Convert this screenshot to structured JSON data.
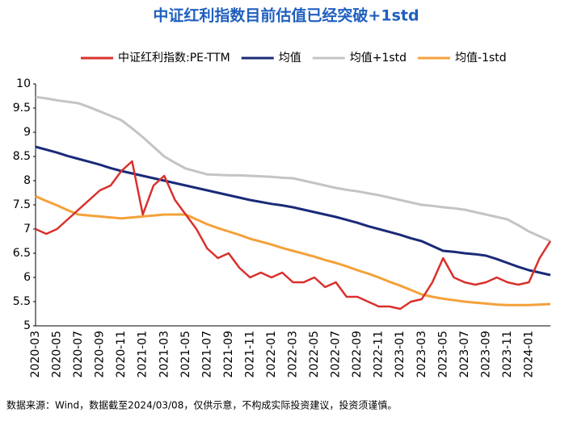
{
  "chart_data": {
    "type": "line",
    "title": "中证红利指数目前估值已经突破+1std",
    "note": "数据来源：Wind，数据截至2024/03/08，仅供示意，不构成实际投资建议，投资须谨慎。",
    "categories": [
      "2020-03",
      null,
      "2020-05",
      null,
      "2020-07",
      null,
      "2020-09",
      null,
      "2020-11",
      null,
      "2021-01",
      null,
      "2021-03",
      null,
      "2021-05",
      null,
      "2021-07",
      null,
      "2021-09",
      null,
      "2021-11",
      null,
      "2022-01",
      null,
      "2022-03",
      null,
      "2022-05",
      null,
      "2022-07",
      null,
      "2022-09",
      null,
      "2022-11",
      null,
      "2023-01",
      null,
      "2023-03",
      null,
      "2023-05",
      null,
      "2023-07",
      null,
      "2023-09",
      null,
      "2023-11",
      null,
      "2024-01",
      null,
      null
    ],
    "ylim": [
      5,
      10
    ],
    "yticks": [
      5,
      5.5,
      6,
      6.5,
      7,
      7.5,
      8,
      8.5,
      9,
      9.5,
      10
    ],
    "series": [
      {
        "name": "中证红利指数:PE-TTM",
        "color": "#d9302c",
        "values": [
          7.0,
          6.9,
          7.0,
          7.2,
          7.4,
          7.6,
          7.8,
          7.9,
          8.2,
          8.4,
          7.3,
          7.9,
          8.1,
          7.6,
          7.3,
          7.0,
          6.6,
          6.4,
          6.5,
          6.2,
          6.0,
          6.1,
          6.0,
          6.1,
          5.9,
          5.9,
          6.0,
          5.8,
          5.9,
          5.6,
          5.6,
          5.5,
          5.4,
          5.4,
          5.35,
          5.5,
          5.55,
          5.9,
          6.4,
          6.0,
          5.9,
          5.85,
          5.9,
          6.0,
          5.9,
          5.85,
          5.9,
          6.4,
          6.75
        ]
      },
      {
        "name": "均值",
        "color": "#1a2a78",
        "values": [
          8.7,
          8.64,
          8.58,
          8.51,
          8.45,
          8.39,
          8.33,
          8.26,
          8.2,
          8.15,
          8.1,
          8.05,
          8.0,
          7.95,
          7.9,
          7.85,
          7.8,
          7.75,
          7.7,
          7.65,
          7.6,
          7.56,
          7.52,
          7.49,
          7.45,
          7.4,
          7.35,
          7.3,
          7.25,
          7.19,
          7.13,
          7.06,
          7.0,
          6.94,
          6.88,
          6.81,
          6.75,
          6.65,
          6.55,
          6.53,
          6.5,
          6.48,
          6.45,
          6.38,
          6.3,
          6.22,
          6.15,
          6.1,
          6.05
        ]
      },
      {
        "name": "均值+1std",
        "color": "#c4c4c4",
        "values": [
          9.73,
          9.7,
          9.66,
          9.63,
          9.6,
          9.52,
          9.43,
          9.34,
          9.25,
          9.08,
          8.9,
          8.7,
          8.5,
          8.37,
          8.25,
          8.19,
          8.13,
          8.12,
          8.11,
          8.11,
          8.1,
          8.09,
          8.08,
          8.06,
          8.05,
          8.0,
          7.95,
          7.9,
          7.85,
          7.81,
          7.78,
          7.74,
          7.7,
          7.65,
          7.6,
          7.55,
          7.5,
          7.48,
          7.45,
          7.43,
          7.4,
          7.35,
          7.3,
          7.25,
          7.2,
          7.08,
          6.95,
          6.85,
          6.75
        ]
      },
      {
        "name": "均值-1std",
        "color": "#f4a13a",
        "values": [
          7.68,
          7.58,
          7.49,
          7.39,
          7.3,
          7.28,
          7.26,
          7.24,
          7.22,
          7.24,
          7.26,
          7.28,
          7.3,
          7.3,
          7.3,
          7.2,
          7.1,
          7.02,
          6.95,
          6.88,
          6.8,
          6.74,
          6.68,
          6.61,
          6.55,
          6.49,
          6.43,
          6.36,
          6.3,
          6.23,
          6.15,
          6.08,
          6.0,
          5.91,
          5.83,
          5.74,
          5.65,
          5.6,
          5.56,
          5.53,
          5.5,
          5.48,
          5.46,
          5.44,
          5.43,
          5.43,
          5.43,
          5.44,
          5.45
        ]
      }
    ],
    "grid": false,
    "legend": "top"
  }
}
